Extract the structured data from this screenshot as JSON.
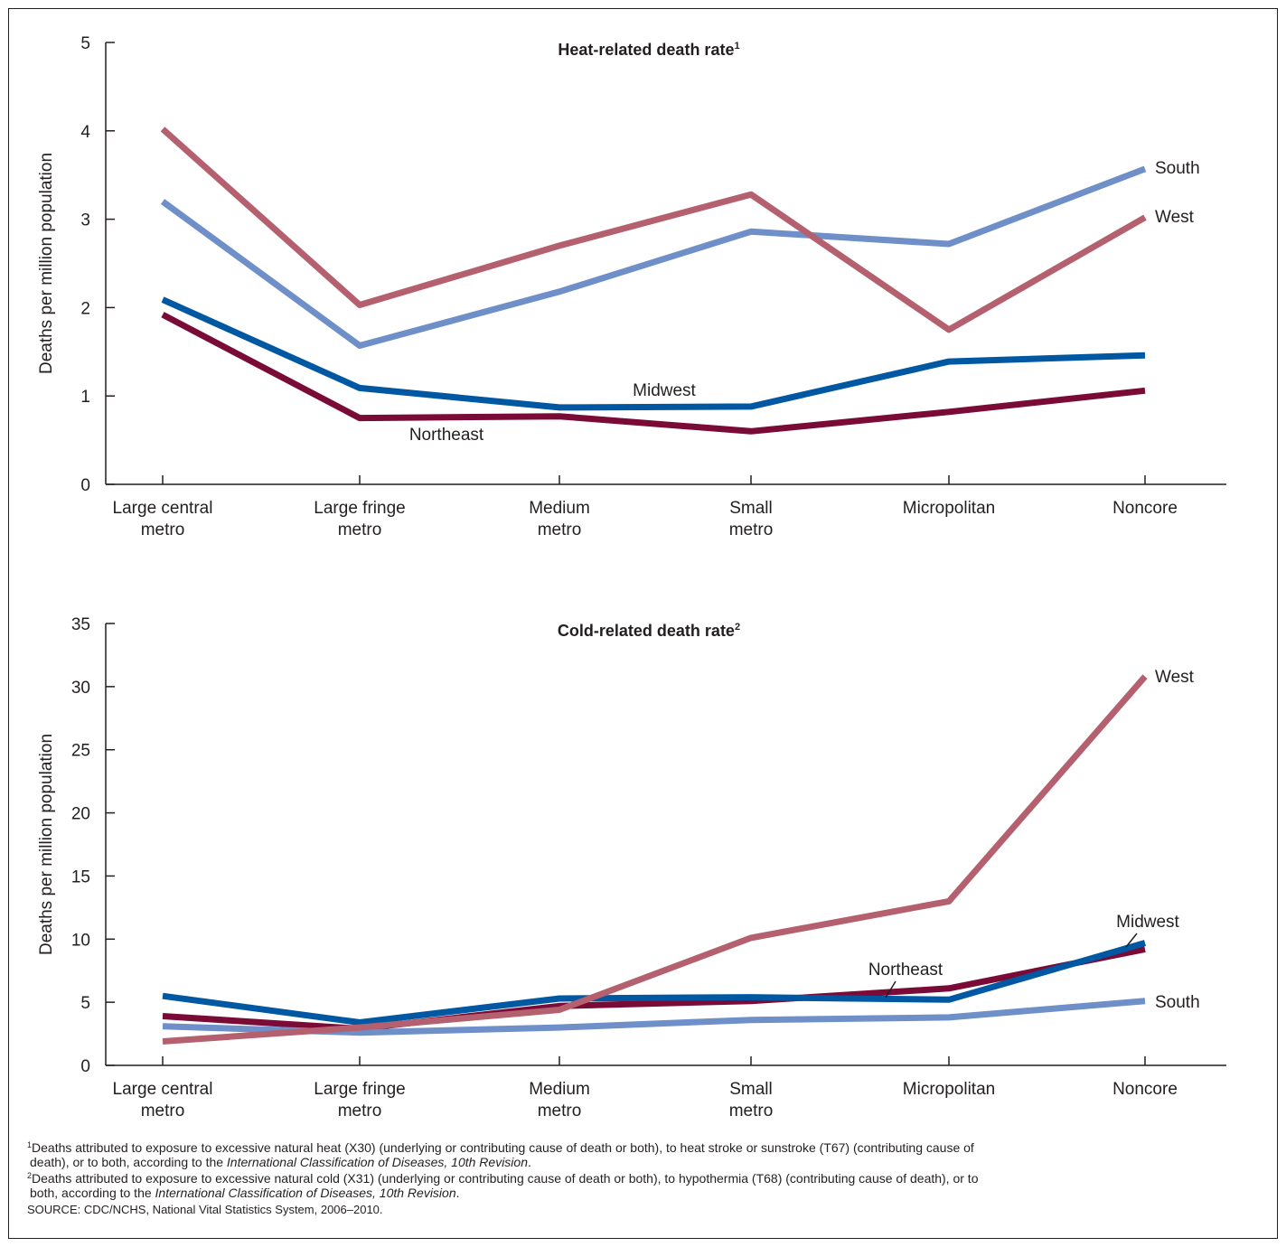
{
  "chart_data": [
    {
      "type": "line",
      "title": "Heat-related death rate",
      "title_sup": "1",
      "ylabel": "Deaths per million population",
      "xlabel": "",
      "ylim": [
        0,
        5
      ],
      "yticks": [
        "0",
        "1",
        "2",
        "3",
        "4",
        "5"
      ],
      "grid": false,
      "categories": [
        [
          "Large central",
          "metro"
        ],
        [
          "Large fringe",
          "metro"
        ],
        [
          "Medium",
          "metro"
        ],
        [
          "Small",
          "metro"
        ],
        [
          "Micropolitan"
        ],
        [
          "Noncore"
        ]
      ],
      "series": [
        {
          "name": "South",
          "color": "#6f8fc8",
          "values": [
            3.2,
            1.57,
            2.18,
            2.86,
            2.72,
            3.57
          ]
        },
        {
          "name": "West",
          "color": "#b5606e",
          "values": [
            4.02,
            2.03,
            2.7,
            3.28,
            1.75,
            3.02
          ]
        },
        {
          "name": "Midwest",
          "color": "#0058a3",
          "values": [
            2.09,
            1.09,
            0.87,
            0.88,
            1.39,
            1.46
          ]
        },
        {
          "name": "Northeast",
          "color": "#7a0a36",
          "values": [
            1.92,
            0.75,
            0.77,
            0.6,
            0.82,
            1.06
          ]
        }
      ]
    },
    {
      "type": "line",
      "title": "Cold-related death rate",
      "title_sup": "2",
      "ylabel": "Deaths per million population",
      "xlabel": "",
      "ylim": [
        0,
        35
      ],
      "yticks": [
        "0",
        "5",
        "10",
        "15",
        "20",
        "25",
        "30",
        "35"
      ],
      "grid": false,
      "categories": [
        [
          "Large central",
          "metro"
        ],
        [
          "Large fringe",
          "metro"
        ],
        [
          "Medium",
          "metro"
        ],
        [
          "Small",
          "metro"
        ],
        [
          "Micropolitan"
        ],
        [
          "Noncore"
        ]
      ],
      "series": [
        {
          "name": "South",
          "color": "#6f8fc8",
          "values": [
            3.1,
            2.6,
            3.0,
            3.6,
            3.8,
            5.1
          ]
        },
        {
          "name": "West",
          "color": "#b5606e",
          "values": [
            1.9,
            3.0,
            4.4,
            10.1,
            13.0,
            30.8
          ]
        },
        {
          "name": "Midwest",
          "color": "#0058a3",
          "values": [
            5.5,
            3.4,
            5.3,
            5.4,
            5.2,
            9.7
          ]
        },
        {
          "name": "Northeast",
          "color": "#7a0a36",
          "values": [
            3.9,
            2.9,
            4.7,
            5.1,
            6.1,
            9.2
          ]
        }
      ]
    }
  ],
  "footnotes": {
    "note1_mark": "1",
    "note1_line1": "Deaths attributed to exposure to excessive natural heat (X30) (underlying or contributing cause of death or both), to heat stroke or sunstroke (T67) (contributing cause of",
    "note1_line2_pre": "death), or to both, according to the ",
    "note1_line2_ital": "International Classification of Diseases, 10th Revision",
    "note1_line2_post": ".",
    "note2_mark": "2",
    "note2_line1": "Deaths attributed to exposure to excessive natural cold (X31) (underlying or contributing cause of death or both), to hypothermia (T68) (contributing cause of death), or to",
    "note2_line2_pre": "both, according to the ",
    "note2_line2_ital": "International Classification of Diseases, 10th Revision",
    "note2_line2_post": ".",
    "source": "SOURCE: CDC/NCHS, National Vital Statistics System, 2006–2010."
  }
}
